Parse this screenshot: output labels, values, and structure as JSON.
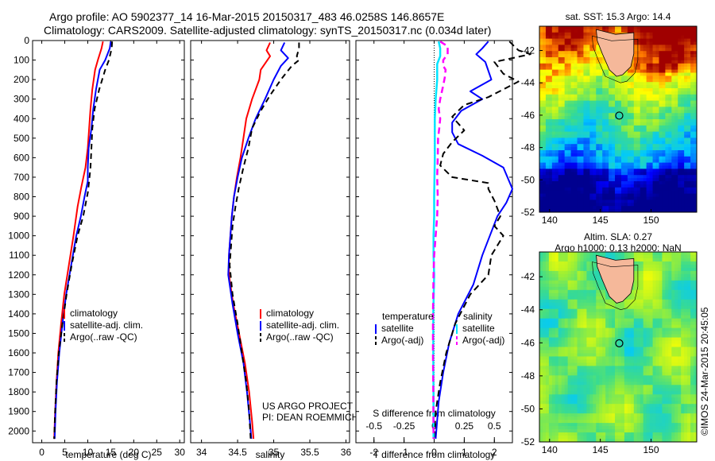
{
  "header": {
    "line1": "Argo profile: AO 5902377_14 16-Mar-2015 20150317_483 46.0258S 146.8657E",
    "line2": "Climatology: CARS2009. Satellite-adjusted climatology: synTS_20150317.nc (0.034d later)"
  },
  "colors": {
    "climatology": "#ff0000",
    "satellite": "#0000ff",
    "argo": "#000000",
    "sal_satellite": "#00e5ff",
    "sal_argo": "#ff00ff"
  },
  "chart_data": [
    {
      "type": "line",
      "xlabel": "temperature (deg C)",
      "xticks": [
        0,
        5,
        10,
        15,
        20,
        25,
        30
      ],
      "xlim": [
        -2,
        31
      ],
      "ylim": [
        0,
        2060
      ],
      "yticks": [
        0,
        100,
        200,
        300,
        400,
        500,
        600,
        700,
        800,
        900,
        1000,
        1100,
        1200,
        1300,
        1400,
        1500,
        1600,
        1700,
        1800,
        1900,
        2000
      ],
      "legend": [
        "climatology",
        "satellite-adj. clim.",
        "Argo(..raw -QC)"
      ],
      "series": [
        {
          "name": "climatology",
          "color": "#ff0000",
          "dash": "",
          "points": [
            [
              13.3,
              5
            ],
            [
              13.0,
              40
            ],
            [
              12.2,
              100
            ],
            [
              11.6,
              150
            ],
            [
              11.0,
              250
            ],
            [
              10.6,
              350
            ],
            [
              10.3,
              450
            ],
            [
              10.0,
              550
            ],
            [
              9.5,
              650
            ],
            [
              8.6,
              750
            ],
            [
              7.8,
              850
            ],
            [
              6.9,
              1000
            ],
            [
              5.9,
              1150
            ],
            [
              4.9,
              1300
            ],
            [
              4.2,
              1450
            ],
            [
              3.6,
              1600
            ],
            [
              3.2,
              1750
            ],
            [
              2.9,
              1900
            ],
            [
              2.7,
              2040
            ]
          ]
        },
        {
          "name": "satellite-adj. clim.",
          "color": "#0000ff",
          "dash": "",
          "points": [
            [
              15.0,
              5
            ],
            [
              14.8,
              40
            ],
            [
              13.8,
              100
            ],
            [
              12.6,
              150
            ],
            [
              11.8,
              250
            ],
            [
              11.2,
              350
            ],
            [
              10.8,
              450
            ],
            [
              10.2,
              550
            ],
            [
              10.0,
              650
            ],
            [
              10.0,
              720
            ],
            [
              9.3,
              800
            ],
            [
              8.5,
              900
            ],
            [
              7.5,
              1000
            ],
            [
              6.4,
              1150
            ],
            [
              5.3,
              1300
            ],
            [
              4.5,
              1450
            ],
            [
              3.8,
              1600
            ],
            [
              3.3,
              1750
            ],
            [
              3.0,
              1900
            ],
            [
              2.8,
              2040
            ]
          ]
        },
        {
          "name": "Argo(..raw -QC)",
          "color": "#000000",
          "dash": "7,5",
          "points": [
            [
              15.3,
              5
            ],
            [
              15.2,
              40
            ],
            [
              14.6,
              100
            ],
            [
              13.8,
              150
            ],
            [
              12.5,
              250
            ],
            [
              11.5,
              350
            ],
            [
              11.0,
              450
            ],
            [
              10.8,
              550
            ],
            [
              10.6,
              650
            ],
            [
              10.3,
              720
            ],
            [
              10.0,
              780
            ],
            [
              9.0,
              900
            ],
            [
              7.8,
              1000
            ],
            [
              6.5,
              1150
            ],
            [
              5.4,
              1300
            ],
            [
              4.5,
              1450
            ],
            [
              3.7,
              1600
            ],
            [
              3.2,
              1750
            ],
            [
              2.9,
              1900
            ],
            [
              2.7,
              2040
            ]
          ]
        }
      ]
    },
    {
      "type": "line",
      "xlabel": "salinity",
      "xticks": [
        "34",
        "34.5",
        "35",
        "35.5",
        "36"
      ],
      "xlim": [
        33.85,
        36.05
      ],
      "ylim": [
        0,
        2060
      ],
      "legend": [
        "climatology",
        "satellite-adj. clim.",
        "Argo(..raw -QC)"
      ],
      "annotation": [
        "US ARGO PROJECT",
        "PI: DEAN ROEMMICH"
      ],
      "series": [
        {
          "name": "climatology",
          "color": "#ff0000",
          "dash": "",
          "points": [
            [
              34.95,
              10
            ],
            [
              34.9,
              50
            ],
            [
              34.95,
              80
            ],
            [
              34.82,
              150
            ],
            [
              34.8,
              200
            ],
            [
              34.7,
              300
            ],
            [
              34.62,
              400
            ],
            [
              34.58,
              500
            ],
            [
              34.54,
              600
            ],
            [
              34.49,
              700
            ],
            [
              34.45,
              800
            ],
            [
              34.42,
              900
            ],
            [
              34.4,
              1000
            ],
            [
              34.38,
              1100
            ],
            [
              34.38,
              1200
            ],
            [
              34.44,
              1350
            ],
            [
              34.52,
              1500
            ],
            [
              34.6,
              1650
            ],
            [
              34.66,
              1800
            ],
            [
              34.7,
              1950
            ],
            [
              34.72,
              2040
            ]
          ]
        },
        {
          "name": "satellite-adj. clim.",
          "color": "#0000ff",
          "dash": "",
          "points": [
            [
              35.15,
              10
            ],
            [
              35.1,
              50
            ],
            [
              35.2,
              90
            ],
            [
              35.1,
              130
            ],
            [
              35.0,
              200
            ],
            [
              34.88,
              300
            ],
            [
              34.75,
              400
            ],
            [
              34.65,
              500
            ],
            [
              34.56,
              600
            ],
            [
              34.5,
              700
            ],
            [
              34.45,
              800
            ],
            [
              34.42,
              900
            ],
            [
              34.4,
              1000
            ],
            [
              34.38,
              1100
            ],
            [
              34.37,
              1200
            ],
            [
              34.43,
              1350
            ],
            [
              34.5,
              1500
            ],
            [
              34.58,
              1650
            ],
            [
              34.63,
              1800
            ],
            [
              34.67,
              1950
            ],
            [
              34.69,
              2040
            ]
          ]
        },
        {
          "name": "Argo(..raw -QC)",
          "color": "#000000",
          "dash": "7,5",
          "points": [
            [
              35.35,
              10
            ],
            [
              35.35,
              40
            ],
            [
              35.32,
              80
            ],
            [
              35.35,
              100
            ],
            [
              35.25,
              130
            ],
            [
              35.1,
              200
            ],
            [
              34.95,
              280
            ],
            [
              34.82,
              360
            ],
            [
              34.7,
              450
            ],
            [
              34.65,
              550
            ],
            [
              34.58,
              650
            ],
            [
              34.52,
              750
            ],
            [
              34.47,
              850
            ],
            [
              34.43,
              950
            ],
            [
              34.41,
              1050
            ],
            [
              34.39,
              1150
            ],
            [
              34.43,
              1300
            ],
            [
              34.5,
              1450
            ],
            [
              34.56,
              1600
            ],
            [
              34.62,
              1750
            ],
            [
              34.66,
              1900
            ],
            [
              34.68,
              2040
            ]
          ]
        }
      ]
    },
    {
      "type": "line",
      "xlabel": "T difference from climatology",
      "xlabel2": "S difference from climatology",
      "xticks": [
        -2,
        -1,
        0,
        1,
        2
      ],
      "xlim": [
        -2.6,
        2.6
      ],
      "x2ticks": [
        "-0.5",
        "-0.25",
        "0",
        "0.25",
        "0.5"
      ],
      "x2lim": [
        -0.65,
        0.65
      ],
      "ylim": [
        0,
        2060
      ],
      "legend_headers": [
        "temperature",
        "salinity"
      ],
      "legend": [
        "satellite",
        "Argo(-adj)",
        "satellite",
        "Argo(-adj)"
      ],
      "series": [
        {
          "name": "satellite",
          "group": "temperature",
          "color": "#0000ff",
          "dash": "",
          "width": 2,
          "points": [
            [
              1.8,
              5
            ],
            [
              1.6,
              40
            ],
            [
              1.4,
              70
            ],
            [
              1.7,
              110
            ],
            [
              1.9,
              200
            ],
            [
              1.2,
              260
            ],
            [
              1.6,
              300
            ],
            [
              0.9,
              360
            ],
            [
              0.6,
              420
            ],
            [
              0.6,
              470
            ],
            [
              0.8,
              530
            ],
            [
              1.6,
              590
            ],
            [
              2.3,
              650
            ],
            [
              2.6,
              760
            ],
            [
              2.4,
              830
            ],
            [
              2.1,
              900
            ],
            [
              1.9,
              980
            ],
            [
              1.6,
              1100
            ],
            [
              1.3,
              1250
            ],
            [
              0.8,
              1400
            ],
            [
              0.5,
              1550
            ],
            [
              0.3,
              1700
            ],
            [
              0.15,
              1850
            ],
            [
              0.05,
              2040
            ]
          ]
        },
        {
          "name": "Argo(-adj)",
          "group": "temperature",
          "color": "#000000",
          "dash": "8,5",
          "width": 2,
          "points": [
            [
              2.5,
              5
            ],
            [
              2.8,
              50
            ],
            [
              3.2,
              70
            ],
            [
              2.0,
              110
            ],
            [
              2.3,
              170
            ],
            [
              2.8,
              210
            ],
            [
              1.8,
              290
            ],
            [
              1.0,
              330
            ],
            [
              0.6,
              390
            ],
            [
              1.0,
              460
            ],
            [
              0.6,
              520
            ],
            [
              0.3,
              580
            ],
            [
              0.2,
              640
            ],
            [
              0.6,
              700
            ],
            [
              1.8,
              730
            ],
            [
              1.8,
              760
            ],
            [
              2.0,
              820
            ],
            [
              2.2,
              900
            ],
            [
              2.0,
              950
            ],
            [
              2.3,
              1000
            ],
            [
              1.9,
              1100
            ],
            [
              1.8,
              1200
            ],
            [
              1.2,
              1300
            ],
            [
              0.7,
              1450
            ],
            [
              0.4,
              1600
            ],
            [
              0.2,
              1750
            ],
            [
              0.05,
              1900
            ],
            [
              0.0,
              2040
            ]
          ]
        },
        {
          "name": "satellite",
          "group": "salinity",
          "color": "#00e5ff",
          "dash": "",
          "width": 2.5,
          "points": [
            [
              0.15,
              5
            ],
            [
              0.2,
              40
            ],
            [
              0.2,
              80
            ],
            [
              0.1,
              120
            ],
            [
              0.1,
              200
            ],
            [
              0.05,
              300
            ],
            [
              0.02,
              400
            ],
            [
              0.02,
              500
            ],
            [
              0.02,
              600
            ],
            [
              0.01,
              700
            ],
            [
              0.0,
              800
            ],
            [
              0.0,
              900
            ],
            [
              -0.02,
              1000
            ],
            [
              -0.02,
              1100
            ],
            [
              0.0,
              1200
            ],
            [
              -0.03,
              1400
            ],
            [
              -0.03,
              1600
            ],
            [
              -0.02,
              1800
            ],
            [
              -0.02,
              2040
            ]
          ]
        },
        {
          "name": "Argo(-adj)",
          "group": "salinity",
          "color": "#ff00ff",
          "dash": "8,5",
          "width": 2.5,
          "points": [
            [
              0.2,
              5
            ],
            [
              0.45,
              30
            ],
            [
              0.45,
              70
            ],
            [
              0.3,
              100
            ],
            [
              0.3,
              130
            ],
            [
              0.38,
              150
            ],
            [
              0.35,
              190
            ],
            [
              0.3,
              230
            ],
            [
              0.2,
              300
            ],
            [
              0.15,
              350
            ],
            [
              0.2,
              400
            ],
            [
              0.17,
              450
            ],
            [
              0.13,
              500
            ],
            [
              0.12,
              600
            ],
            [
              0.1,
              700
            ],
            [
              0.12,
              800
            ],
            [
              0.1,
              900
            ],
            [
              0.05,
              1000
            ],
            [
              0.0,
              1100
            ],
            [
              -0.02,
              1200
            ],
            [
              -0.04,
              1400
            ],
            [
              -0.04,
              1600
            ],
            [
              -0.03,
              1800
            ],
            [
              -0.02,
              2040
            ]
          ]
        }
      ]
    }
  ],
  "maps": [
    {
      "title": "sat. SST: 15.3 Argo: 14.4",
      "title_lines": [
        "sat. SST: 15.3 Argo: 14.4"
      ],
      "xticks": [
        140,
        145,
        150
      ],
      "yticks": [
        -42,
        -44,
        -46,
        -48,
        -50,
        -52
      ],
      "lon_range": [
        139,
        154.5
      ],
      "lat_range": [
        -52,
        -40.5
      ],
      "field": "sst",
      "marker_lon": 146.8657,
      "marker_lat": -46.0258
    },
    {
      "title": "Altim. SLA: 0.27",
      "title_lines": [
        "Altim. SLA: 0.27",
        "Argo h1000: 0.13 h2000: NaN"
      ],
      "xticks": [
        140,
        145,
        150
      ],
      "yticks": [
        -42,
        -44,
        -46,
        -48,
        -50,
        -52
      ],
      "lon_range": [
        139,
        154.5
      ],
      "lat_range": [
        -52,
        -40.5
      ],
      "field": "sla",
      "marker_lon": 146.8657,
      "marker_lat": -46.0258
    }
  ],
  "watermark": "©IMOS 24-Mar-2015 20:45:05"
}
